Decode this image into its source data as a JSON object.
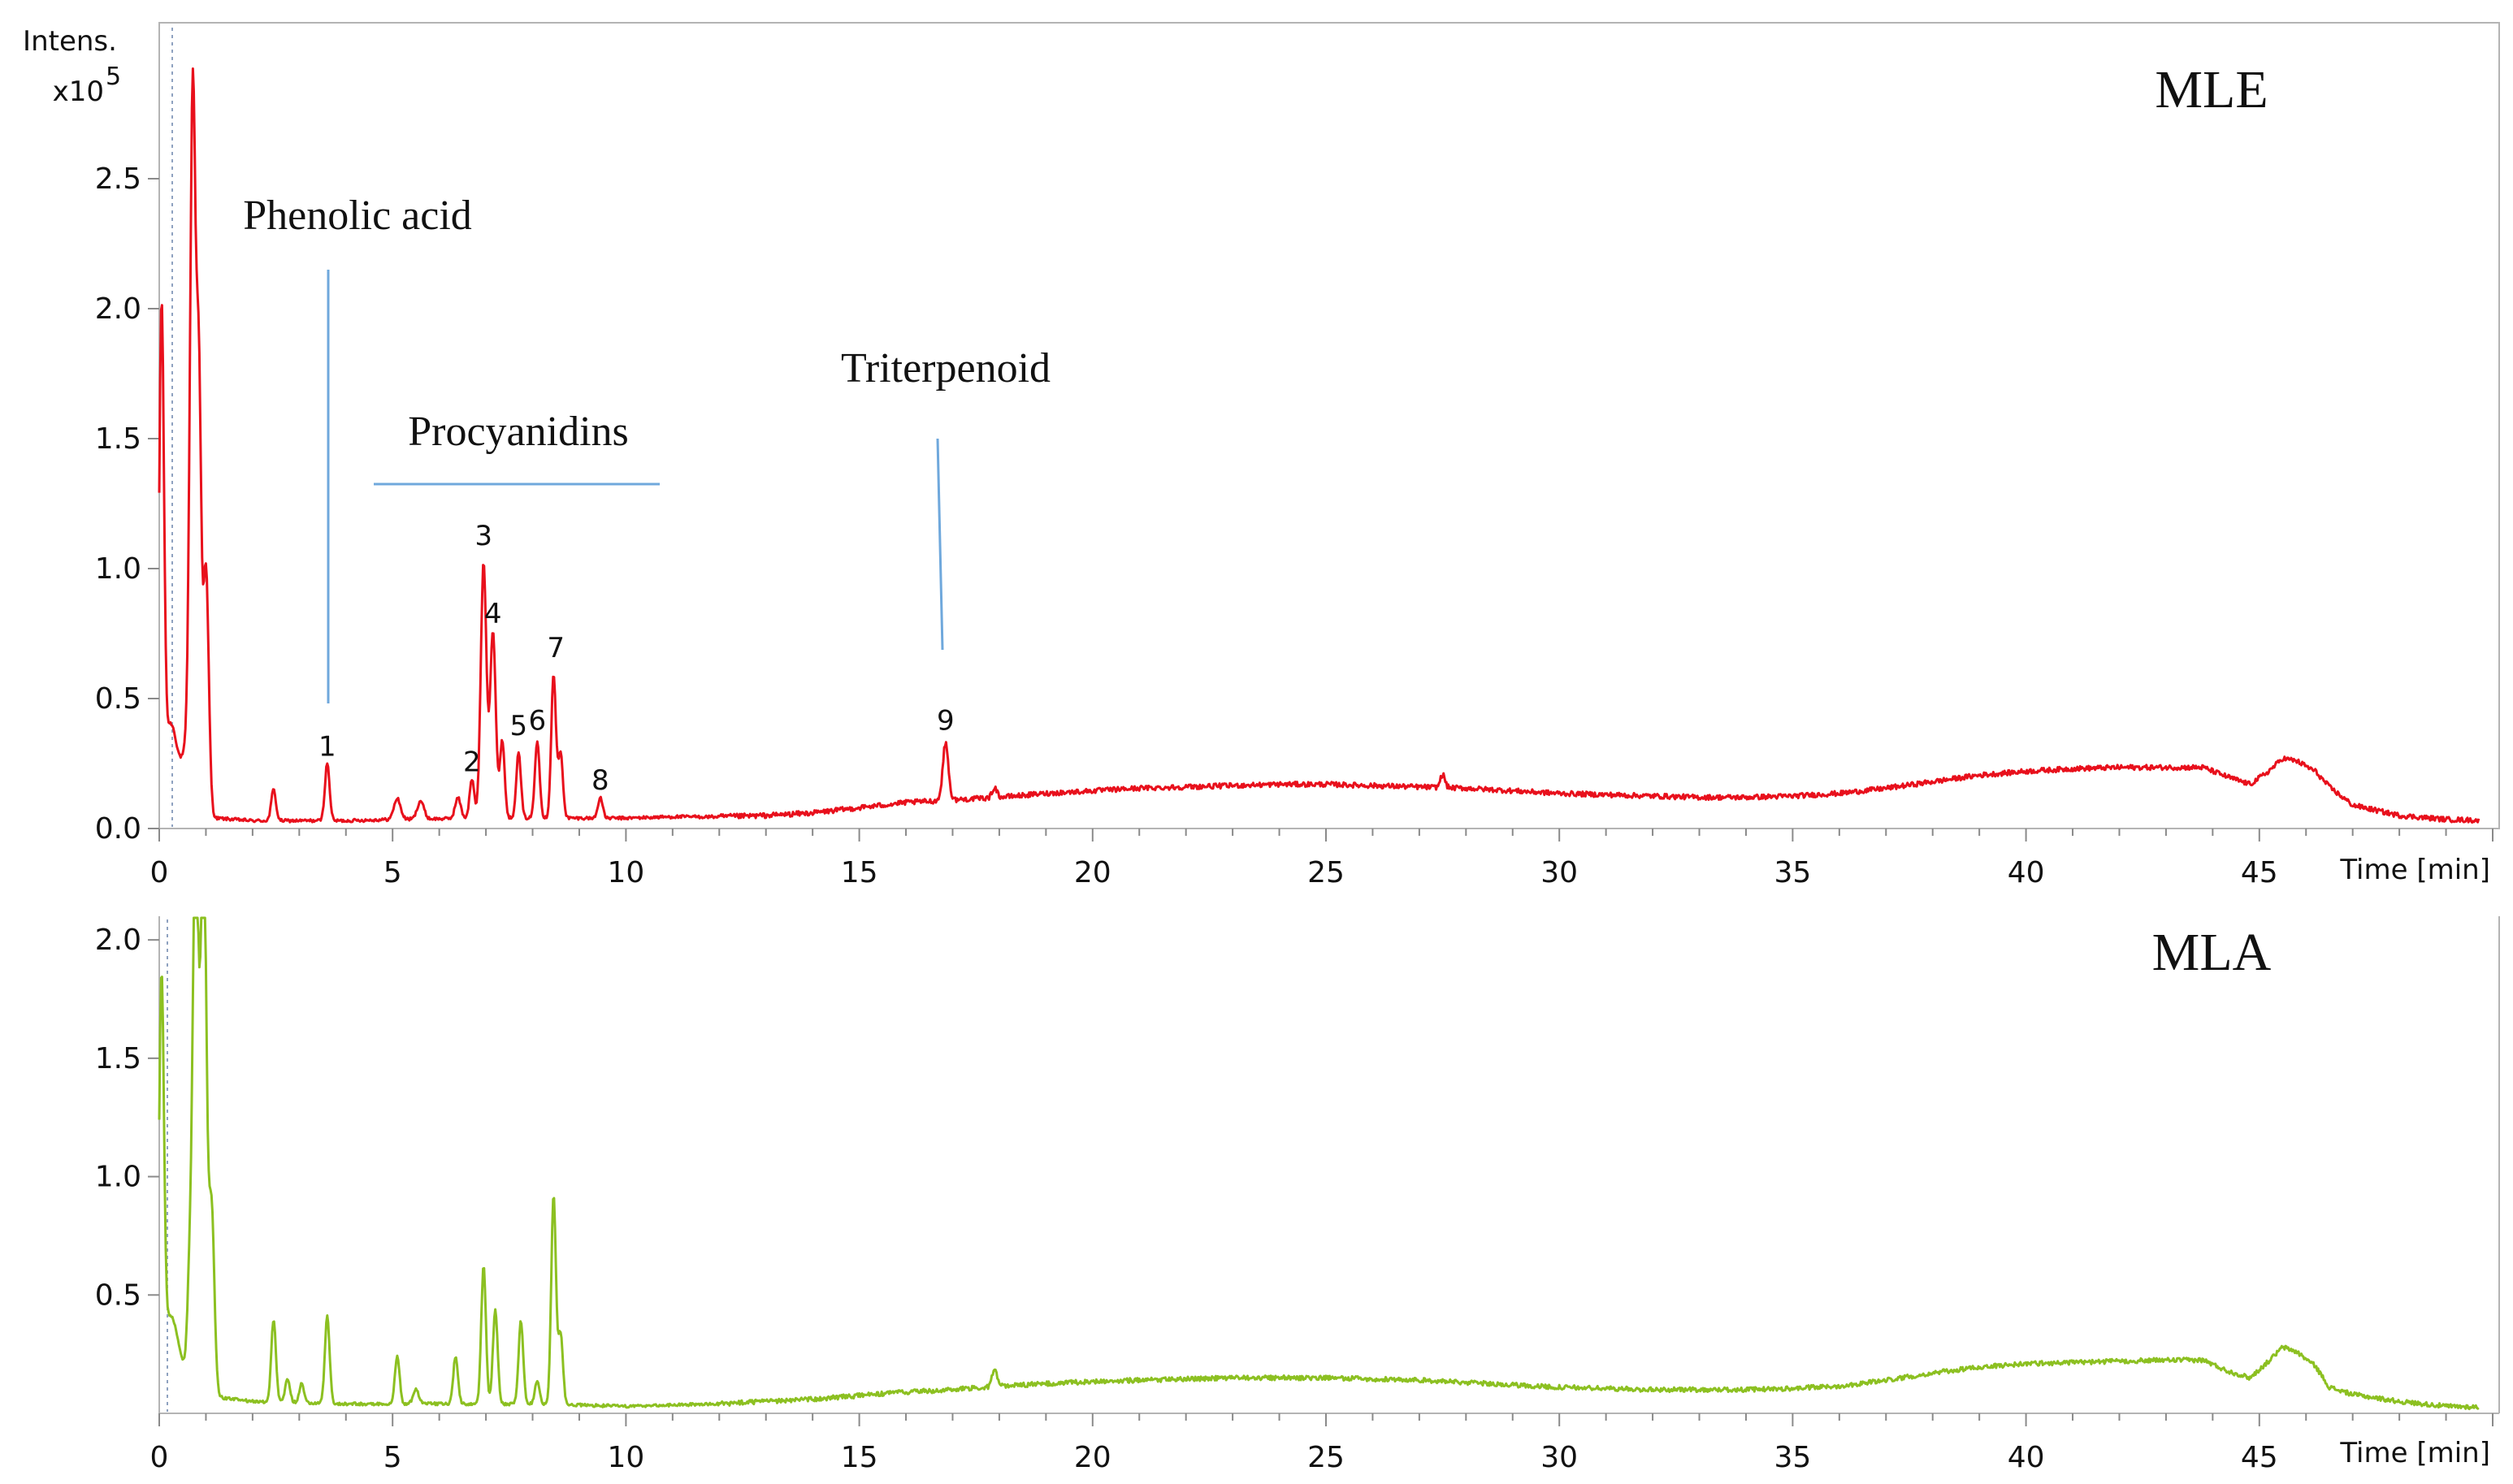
{
  "chart_data": [
    {
      "type": "line",
      "title": "MLE",
      "ylabel": "Intens.",
      "y_multiplier": "x10",
      "y_exponent": "5",
      "xlabel": "Time [min]",
      "xlim": [
        0,
        50
      ],
      "ylim": [
        0,
        3.1
      ],
      "x_ticks": [
        "0",
        "5",
        "10",
        "15",
        "20",
        "25",
        "30",
        "35",
        "40",
        "45"
      ],
      "y_ticks": [
        "0.0",
        "0.5",
        "1.0",
        "1.5",
        "2.0",
        "2.5"
      ],
      "color": "#e8101c",
      "baseline_x": [
        0,
        1.2,
        2,
        3,
        4,
        5,
        7,
        8,
        9,
        10,
        11,
        12,
        13,
        14,
        15,
        16,
        17,
        18,
        19,
        20,
        21,
        22,
        23,
        24,
        25,
        26,
        27,
        28,
        29,
        30,
        31,
        32,
        33,
        34,
        35,
        36,
        37,
        38,
        39,
        40,
        41,
        42,
        43,
        43.8,
        44.3,
        44.8,
        45.2,
        45.5,
        45.8,
        46.2,
        46.5,
        47,
        48,
        49,
        50
      ],
      "baseline_y": [
        0.12,
        0.04,
        0.03,
        0.03,
        0.03,
        0.035,
        0.04,
        0.04,
        0.04,
        0.04,
        0.045,
        0.045,
        0.05,
        0.06,
        0.08,
        0.1,
        0.11,
        0.12,
        0.135,
        0.145,
        0.155,
        0.16,
        0.165,
        0.17,
        0.17,
        0.165,
        0.16,
        0.155,
        0.145,
        0.135,
        0.13,
        0.125,
        0.12,
        0.12,
        0.125,
        0.135,
        0.155,
        0.18,
        0.205,
        0.22,
        0.23,
        0.235,
        0.235,
        0.235,
        0.2,
        0.17,
        0.22,
        0.27,
        0.26,
        0.22,
        0.16,
        0.09,
        0.05,
        0.035,
        0.03
      ],
      "peaks": [
        {
          "t": 0.05,
          "h": 1.8,
          "w": 0.05
        },
        {
          "t": 0.25,
          "h": 0.3,
          "w": 0.15
        },
        {
          "t": 0.72,
          "h": 2.7,
          "w": 0.06
        },
        {
          "t": 0.85,
          "h": 1.55,
          "w": 0.05
        },
        {
          "t": 1.0,
          "h": 0.95,
          "w": 0.06
        },
        {
          "t": 0.6,
          "h": 0.2,
          "w": 0.1
        },
        {
          "t": 2.45,
          "h": 0.12,
          "w": 0.05
        },
        {
          "t": 3.6,
          "h": 0.22,
          "w": 0.05
        },
        {
          "t": 5.1,
          "h": 0.08,
          "w": 0.07
        },
        {
          "t": 5.6,
          "h": 0.07,
          "w": 0.07
        },
        {
          "t": 6.4,
          "h": 0.08,
          "w": 0.06
        },
        {
          "t": 6.7,
          "h": 0.15,
          "w": 0.05
        },
        {
          "t": 6.95,
          "h": 0.98,
          "w": 0.06
        },
        {
          "t": 7.15,
          "h": 0.72,
          "w": 0.06
        },
        {
          "t": 7.35,
          "h": 0.3,
          "w": 0.05
        },
        {
          "t": 7.7,
          "h": 0.25,
          "w": 0.05
        },
        {
          "t": 8.1,
          "h": 0.3,
          "w": 0.05
        },
        {
          "t": 8.45,
          "h": 0.55,
          "w": 0.05
        },
        {
          "t": 8.6,
          "h": 0.25,
          "w": 0.05
        },
        {
          "t": 9.45,
          "h": 0.08,
          "w": 0.05
        },
        {
          "t": 16.85,
          "h": 0.22,
          "w": 0.06
        },
        {
          "t": 17.9,
          "h": 0.04,
          "w": 0.05
        },
        {
          "t": 27.5,
          "h": 0.05,
          "w": 0.05
        }
      ],
      "peak_labels": [
        {
          "label": "1",
          "x": 3.6,
          "y": 0.28
        },
        {
          "label": "2",
          "x": 6.7,
          "y": 0.22
        },
        {
          "label": "3",
          "x": 6.95,
          "y": 1.09
        },
        {
          "label": "4",
          "x": 7.15,
          "y": 0.79
        },
        {
          "label": "5",
          "x": 7.7,
          "y": 0.36
        },
        {
          "label": "6",
          "x": 8.1,
          "y": 0.38
        },
        {
          "label": "7",
          "x": 8.5,
          "y": 0.66
        },
        {
          "label": "8",
          "x": 9.45,
          "y": 0.15
        },
        {
          "label": "9",
          "x": 16.85,
          "y": 0.38
        }
      ],
      "annotations": [
        {
          "text": "Phenolic acid",
          "x": 4.3,
          "y": 2.3
        },
        {
          "text": "Procyanidins",
          "x": 7.3,
          "y": 1.42
        },
        {
          "text": "Triterpenoid",
          "x": 17.0,
          "y": 1.65
        }
      ]
    },
    {
      "type": "line",
      "title": "MLA",
      "xlabel": "Time [min]",
      "xlim": [
        0,
        50
      ],
      "ylim": [
        0,
        2.1
      ],
      "x_ticks": [
        "0",
        "5",
        "10",
        "15",
        "20",
        "25",
        "30",
        "35",
        "40",
        "45"
      ],
      "y_ticks": [
        "0.5",
        "1.0",
        "1.5",
        "2.0"
      ],
      "color": "#8cc021",
      "baseline_x": [
        0,
        1.2,
        2,
        3,
        4,
        5,
        7,
        8,
        9,
        10,
        11,
        12,
        13,
        14,
        15,
        16,
        17,
        18,
        19,
        20,
        21,
        22,
        23,
        24,
        25,
        26,
        27,
        28,
        29,
        30,
        31,
        32,
        33,
        34,
        35,
        36,
        37,
        38,
        39,
        40,
        41,
        42,
        43,
        43.8,
        44.3,
        44.8,
        45.2,
        45.5,
        45.8,
        46.2,
        46.5,
        47,
        48,
        49,
        50
      ],
      "baseline_y": [
        0.25,
        0.07,
        0.05,
        0.045,
        0.04,
        0.04,
        0.04,
        0.04,
        0.035,
        0.03,
        0.035,
        0.04,
        0.05,
        0.06,
        0.075,
        0.09,
        0.1,
        0.115,
        0.125,
        0.135,
        0.14,
        0.145,
        0.15,
        0.15,
        0.15,
        0.145,
        0.14,
        0.13,
        0.12,
        0.11,
        0.105,
        0.1,
        0.1,
        0.1,
        0.105,
        0.115,
        0.14,
        0.17,
        0.195,
        0.21,
        0.215,
        0.22,
        0.225,
        0.225,
        0.18,
        0.15,
        0.22,
        0.28,
        0.26,
        0.2,
        0.11,
        0.08,
        0.05,
        0.03,
        0.025
      ],
      "peaks": [
        {
          "t": 0.05,
          "h": 1.55,
          "w": 0.05
        },
        {
          "t": 0.25,
          "h": 0.2,
          "w": 0.15
        },
        {
          "t": 0.65,
          "h": 0.4,
          "w": 0.05
        },
        {
          "t": 0.78,
          "h": 2.4,
          "w": 0.06
        },
        {
          "t": 0.95,
          "h": 2.4,
          "w": 0.06
        },
        {
          "t": 1.12,
          "h": 0.8,
          "w": 0.06
        },
        {
          "t": 2.45,
          "h": 0.35,
          "w": 0.05
        },
        {
          "t": 2.75,
          "h": 0.1,
          "w": 0.05
        },
        {
          "t": 3.05,
          "h": 0.08,
          "w": 0.05
        },
        {
          "t": 3.6,
          "h": 0.37,
          "w": 0.05
        },
        {
          "t": 5.1,
          "h": 0.2,
          "w": 0.05
        },
        {
          "t": 5.5,
          "h": 0.06,
          "w": 0.06
        },
        {
          "t": 6.35,
          "h": 0.2,
          "w": 0.05
        },
        {
          "t": 6.95,
          "h": 0.58,
          "w": 0.05
        },
        {
          "t": 7.2,
          "h": 0.4,
          "w": 0.05
        },
        {
          "t": 7.75,
          "h": 0.35,
          "w": 0.05
        },
        {
          "t": 8.1,
          "h": 0.1,
          "w": 0.05
        },
        {
          "t": 8.45,
          "h": 0.88,
          "w": 0.05
        },
        {
          "t": 8.6,
          "h": 0.3,
          "w": 0.05
        },
        {
          "t": 17.9,
          "h": 0.08,
          "w": 0.05
        }
      ]
    }
  ]
}
